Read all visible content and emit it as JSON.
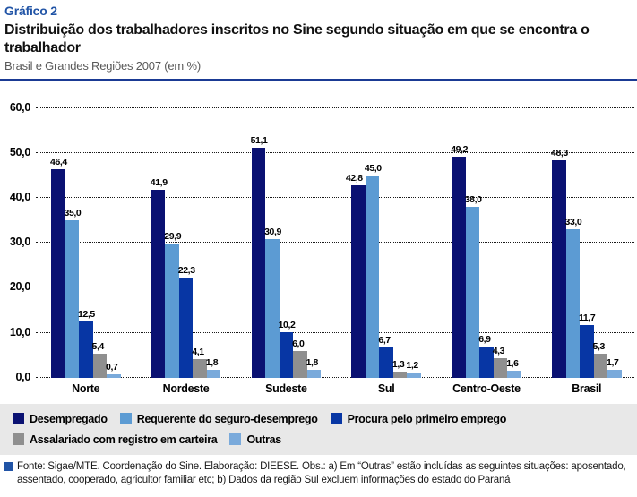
{
  "header": {
    "kicker": "Gráfico 2",
    "title": "Distribuição dos trabalhadores inscritos no Sine segundo situação em que se encontra o trabalhador",
    "subtitle": "Brasil e Grandes Regiões 2007 (em %)"
  },
  "chart_data": {
    "type": "bar",
    "categories": [
      "Norte",
      "Nordeste",
      "Sudeste",
      "Sul",
      "Centro-Oeste",
      "Brasil"
    ],
    "series": [
      {
        "name": "Desempregado",
        "color": "#0A1172",
        "values": [
          46.4,
          41.9,
          51.1,
          42.8,
          49.2,
          48.3
        ]
      },
      {
        "name": "Requerente do seguro-desemprego",
        "color": "#5C9BD3",
        "values": [
          35.0,
          29.9,
          30.9,
          45.0,
          38.0,
          33.0
        ]
      },
      {
        "name": "Procura pelo primeiro emprego",
        "color": "#0736A4",
        "values": [
          12.5,
          22.3,
          10.2,
          6.7,
          6.9,
          11.7
        ]
      },
      {
        "name": "Assalariado com registro em carteira",
        "color": "#8F8F8F",
        "values": [
          5.4,
          4.1,
          6.0,
          1.3,
          4.3,
          5.3
        ]
      },
      {
        "name": "Outras",
        "color": "#7AAADB",
        "values": [
          0.7,
          1.8,
          1.8,
          1.2,
          1.6,
          1.7
        ]
      }
    ],
    "ylim": [
      0,
      60
    ],
    "ytick_step": 10,
    "ytick_labels": [
      "0,0",
      "10,0",
      "20,0",
      "30,0",
      "40,0",
      "50,0",
      "60,0"
    ],
    "grid": "horizontal-dotted",
    "legend_position": "bottom",
    "value_labels": "above-bars, comma decimal"
  },
  "footer": {
    "note": "Fonte: Sigae/MTE. Coordenação do Sine. Elaboração: DIEESE. Obs.: a) Em “Outras” estão incluídas as seguintes situações: aposentado, assentado, cooperado, agricultor familiar etc; b) Dados da região Sul excluem informações do estado do Paraná"
  },
  "colors": {
    "kicker_blue": "#2154A6",
    "rule_navy": "#1A3A94",
    "legend_background": "#E8E8E8",
    "subtitle_gray": "#595959"
  }
}
